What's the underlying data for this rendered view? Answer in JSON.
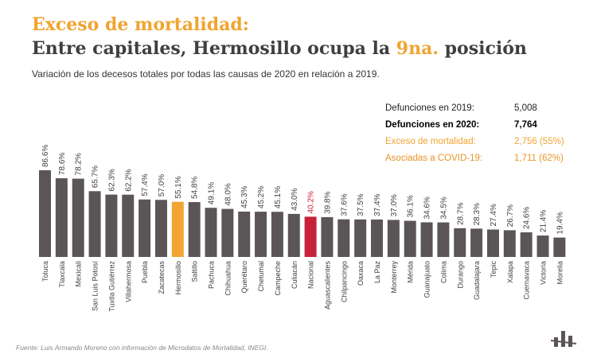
{
  "header": {
    "title_line1": "Exceso de mortalidad:",
    "title_line2_prefix": "Entre capitales, Hermosillo ocupa la ",
    "title_line2_highlight": "9na.",
    "title_line2_suffix": " posición",
    "subtitle": "Variación de los decesos totales por todas las causas de 2020 en relación a 2019."
  },
  "stats": [
    {
      "label": "Defunciones en 2019:",
      "value": "5,008"
    },
    {
      "label": "Defunciones en 2020:",
      "value": "7,764"
    },
    {
      "label": "Exceso de mortalidad:",
      "value": "2,756 (55%)"
    },
    {
      "label": "Asociadas a COVID-19:",
      "value": "1,711 (62%)"
    }
  ],
  "source": "Fuente: Luis Armando Moreno con información de Microdatos de Mortalidad, INEGI.",
  "colors": {
    "default": "#5c5557",
    "highlight": "#f2a531",
    "national": "#c7223a",
    "text": "#3f3f3f"
  },
  "chart_data": {
    "type": "bar",
    "categories": [
      "Toluca",
      "Tlaxcala",
      "Mexicali",
      "San Luis Potosí",
      "Tuxtla Gutiérrez",
      "Villahermosa",
      "Puebla",
      "Zacatecas",
      "Hermosillo",
      "Saltillo",
      "Pachuca",
      "Chihuahua",
      "Querétaro",
      "Chetumal",
      "Campeche",
      "Culiacán",
      "Nacional",
      "Aguascalientes",
      "Chilpancingo",
      "Oaxaca",
      "La Paz",
      "Monterrey",
      "Mérida",
      "Guanajuato",
      "Colima",
      "Durango",
      "Guadalajara",
      "Tepic",
      "Xalapa",
      "Cuernavaca",
      "Victoria",
      "Morelia"
    ],
    "values": [
      86.6,
      78.6,
      78.2,
      65.7,
      62.3,
      62.2,
      57.4,
      57.0,
      55.1,
      54.8,
      49.1,
      48.0,
      45.3,
      45.2,
      45.1,
      43.0,
      40.2,
      39.8,
      37.6,
      37.5,
      37.4,
      37.0,
      36.1,
      34.6,
      34.5,
      28.7,
      28.3,
      27.4,
      26.7,
      24.6,
      21.4,
      19.4
    ],
    "value_labels": [
      "86.6%",
      "78.6%",
      "78.2%",
      "65.7%",
      "62.3%",
      "62.2%",
      "57.4%",
      "57.0%",
      "55.1%",
      "54.8%",
      "49.1%",
      "48.0%",
      "45.3%",
      "45.2%",
      "45.1%",
      "43.0%",
      "40.2%",
      "39.8%",
      "37.6%",
      "37.5%",
      "37.4%",
      "37.0%",
      "36.1%",
      "34.6%",
      "34.5%",
      "28.7%",
      "28.3%",
      "27.4%",
      "26.7%",
      "24.6%",
      "21.4%",
      "19.4%"
    ],
    "highlight": "Hermosillo",
    "national": "Nacional",
    "ylim": [
      0,
      100
    ],
    "grid": false,
    "legend": "none"
  }
}
